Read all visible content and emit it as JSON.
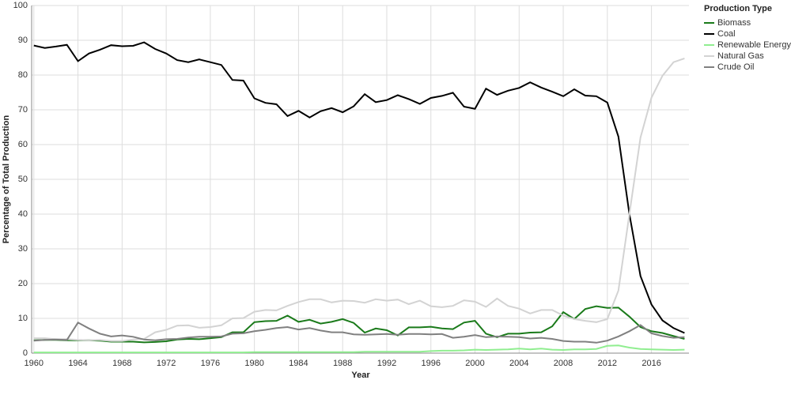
{
  "chart_data": {
    "type": "line",
    "x_label": "Year",
    "y_label": "Percentage of Total Production",
    "legend_title": "Production Type",
    "x": [
      1960,
      1961,
      1962,
      1963,
      1964,
      1965,
      1966,
      1967,
      1968,
      1969,
      1970,
      1971,
      1972,
      1973,
      1974,
      1975,
      1976,
      1977,
      1978,
      1979,
      1980,
      1981,
      1982,
      1983,
      1984,
      1985,
      1986,
      1987,
      1988,
      1989,
      1990,
      1991,
      1992,
      1993,
      1994,
      1995,
      1996,
      1997,
      1998,
      1999,
      2000,
      2001,
      2002,
      2003,
      2004,
      2005,
      2006,
      2007,
      2008,
      2009,
      2010,
      2011,
      2012,
      2013,
      2014,
      2015,
      2016,
      2017,
      2018,
      2019
    ],
    "series": [
      {
        "name": "Biomass",
        "color": "#1a7a1a",
        "values": [
          3.7,
          3.8,
          3.8,
          3.7,
          3.7,
          3.7,
          3.6,
          3.3,
          3.3,
          3.3,
          3.1,
          3.2,
          3.4,
          3.9,
          4.1,
          4.0,
          4.3,
          4.6,
          6.0,
          6.0,
          8.9,
          9.2,
          9.3,
          10.8,
          9.0,
          9.6,
          8.5,
          9.0,
          9.8,
          8.7,
          5.9,
          7.1,
          6.6,
          5.1,
          7.4,
          7.4,
          7.6,
          7.1,
          6.9,
          8.8,
          9.3,
          5.6,
          4.6,
          5.6,
          5.6,
          5.9,
          6.0,
          7.7,
          11.8,
          9.8,
          12.7,
          13.5,
          13.0,
          13.1,
          10.5,
          7.5,
          6.3,
          5.8,
          4.9,
          4.1
        ]
      },
      {
        "name": "Coal",
        "color": "#000000",
        "values": [
          88.5,
          87.8,
          88.2,
          88.7,
          84.0,
          86.2,
          87.3,
          88.6,
          88.3,
          88.4,
          89.4,
          87.5,
          86.2,
          84.3,
          83.7,
          84.5,
          83.7,
          82.9,
          78.6,
          78.4,
          73.3,
          72.0,
          71.6,
          68.2,
          69.7,
          67.8,
          69.6,
          70.5,
          69.3,
          71.0,
          74.5,
          72.2,
          72.8,
          74.2,
          73.1,
          71.7,
          73.4,
          74.0,
          74.9,
          70.9,
          70.3,
          76.1,
          74.3,
          75.5,
          76.3,
          77.9,
          76.4,
          75.2,
          73.9,
          75.9,
          74.1,
          73.9,
          72.1,
          62.3,
          40.0,
          22.2,
          14.0,
          9.4,
          7.2,
          5.8
        ]
      },
      {
        "name": "Renewable Energy",
        "color": "#90ee90",
        "values": [
          0.2,
          0.2,
          0.2,
          0.2,
          0.2,
          0.2,
          0.2,
          0.2,
          0.2,
          0.2,
          0.2,
          0.2,
          0.2,
          0.2,
          0.2,
          0.2,
          0.2,
          0.2,
          0.2,
          0.2,
          0.3,
          0.3,
          0.3,
          0.3,
          0.3,
          0.3,
          0.3,
          0.3,
          0.3,
          0.3,
          0.4,
          0.4,
          0.4,
          0.4,
          0.4,
          0.4,
          0.6,
          0.7,
          0.7,
          0.8,
          1.0,
          0.9,
          1.0,
          1.1,
          1.3,
          1.1,
          1.3,
          1.0,
          0.9,
          1.1,
          1.1,
          1.2,
          2.1,
          2.2,
          1.6,
          1.2,
          1.1,
          1.0,
          0.9,
          1.0
        ]
      },
      {
        "name": "Natural Gas",
        "color": "#d3d3d3",
        "values": [
          4.3,
          4.3,
          4.0,
          4.0,
          3.8,
          3.7,
          3.8,
          3.5,
          3.5,
          3.9,
          4.1,
          6.0,
          6.7,
          7.9,
          8.0,
          7.3,
          7.5,
          8.0,
          10.0,
          10.1,
          11.9,
          12.4,
          12.3,
          13.6,
          14.7,
          15.5,
          15.5,
          14.6,
          15.1,
          15.0,
          14.5,
          15.5,
          15.1,
          15.4,
          14.1,
          15.1,
          13.5,
          13.2,
          13.6,
          15.2,
          14.8,
          13.3,
          15.7,
          13.6,
          12.8,
          11.4,
          12.4,
          12.4,
          10.8,
          9.8,
          9.3,
          8.9,
          9.8,
          18.0,
          40.0,
          62.0,
          73.5,
          79.8,
          83.7,
          84.8
        ]
      },
      {
        "name": "Crude Oil",
        "color": "#808080",
        "values": [
          3.6,
          3.8,
          3.9,
          3.8,
          8.8,
          7.1,
          5.6,
          4.8,
          5.1,
          4.7,
          3.9,
          3.7,
          4.0,
          4.1,
          4.5,
          4.7,
          4.7,
          4.8,
          5.6,
          5.7,
          6.3,
          6.7,
          7.2,
          7.5,
          6.8,
          7.2,
          6.5,
          6.0,
          6.0,
          5.4,
          5.3,
          5.4,
          5.5,
          5.3,
          5.5,
          5.5,
          5.4,
          5.5,
          4.4,
          4.7,
          5.2,
          4.6,
          4.8,
          4.7,
          4.6,
          4.2,
          4.4,
          4.1,
          3.5,
          3.3,
          3.3,
          3.0,
          3.6,
          4.8,
          6.3,
          8.1,
          5.7,
          4.9,
          4.4,
          4.6
        ]
      }
    ],
    "xlim": [
      1959.8,
      2019.4
    ],
    "xticks": [
      1960,
      1964,
      1968,
      1972,
      1976,
      1980,
      1984,
      1988,
      1992,
      1996,
      2000,
      2004,
      2008,
      2012,
      2016
    ],
    "ylim": [
      0,
      100
    ],
    "yticks": [
      0,
      10,
      20,
      30,
      40,
      50,
      60,
      70,
      80,
      90,
      100
    ],
    "grid": true,
    "legend": "right"
  }
}
